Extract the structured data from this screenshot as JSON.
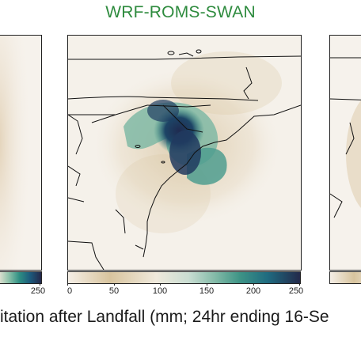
{
  "title": "WRF-ROMS-SWAN",
  "colorbar": {
    "center_ticks": [
      "0",
      "50",
      "100",
      "150",
      "200",
      "250"
    ],
    "left_last_tick": "250"
  },
  "caption": "itation after Landfall (mm; 24hr ending 16-Se"
}
